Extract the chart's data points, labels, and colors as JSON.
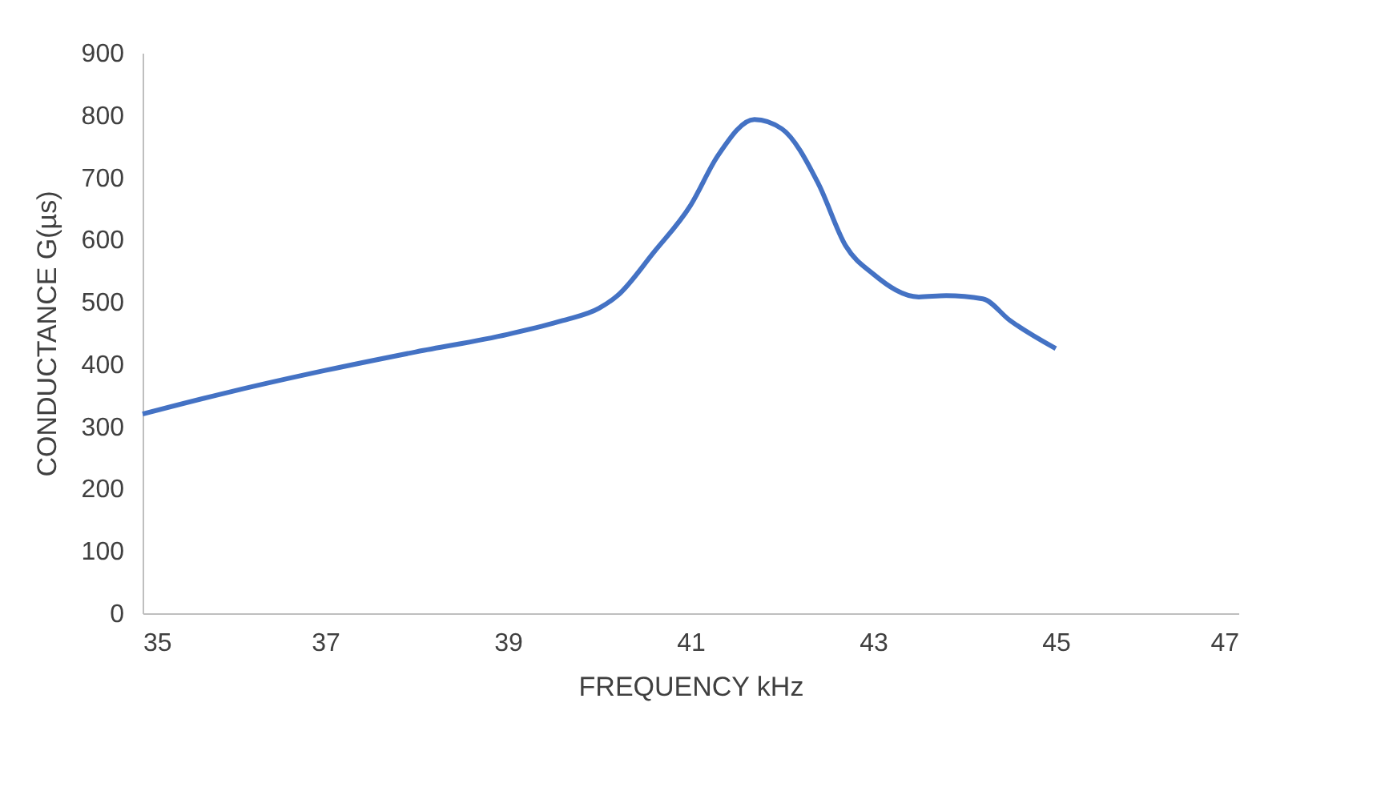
{
  "chart_data": {
    "type": "line",
    "xlabel": "FREQUENCY kHz",
    "ylabel": "CONDUCTANCE G(µs)",
    "xlim": [
      35,
      47
    ],
    "xticks": [
      35,
      37,
      39,
      41,
      43,
      45,
      47
    ],
    "ylim": [
      0,
      900
    ],
    "yticks": [
      0,
      100,
      200,
      300,
      400,
      500,
      600,
      700,
      800,
      900
    ],
    "grid": false,
    "marker": "none",
    "line_style": "solid",
    "series": [
      {
        "color": "#4472c4",
        "x": [
          35,
          36,
          37,
          38,
          39,
          39.6,
          40,
          40.2,
          40.6,
          41,
          41.3,
          41.7,
          42,
          42.4,
          42.7,
          43,
          43.5,
          43.8,
          44.2,
          44.5,
          45
        ],
        "values": [
          320,
          357,
          390,
          420,
          448,
          470,
          490,
          510,
          580,
          655,
          735,
          793,
          778,
          690,
          590,
          545,
          508,
          510,
          505,
          470,
          425
        ]
      }
    ]
  }
}
